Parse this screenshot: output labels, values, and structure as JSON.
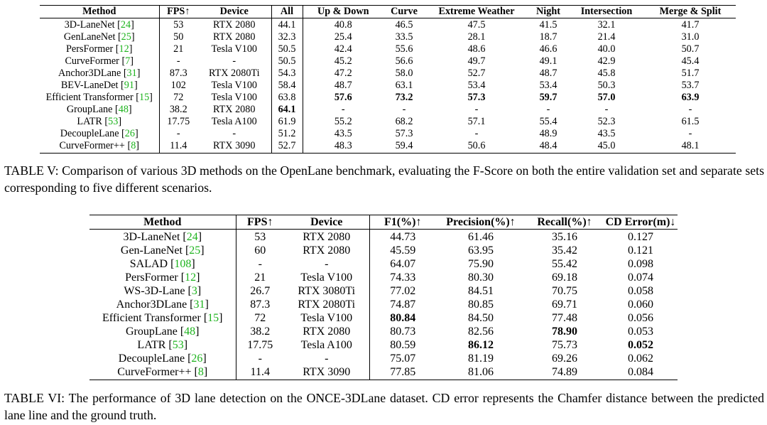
{
  "table5": {
    "headers": [
      "Method",
      "FPS↑",
      "Device",
      "All",
      "Up & Down",
      "Curve",
      "Extreme Weather",
      "Night",
      "Intersection",
      "Merge & Split"
    ],
    "rows": [
      {
        "method": "3D-LaneNet",
        "ref": "24",
        "fps": "53",
        "device": "RTX 2080",
        "all": "44.1",
        "updown": "40.8",
        "curve": "46.5",
        "weather": "47.5",
        "night": "41.5",
        "intersection": "32.1",
        "merge": "41.7"
      },
      {
        "method": "GenLaneNet",
        "ref": "25",
        "fps": "50",
        "device": "RTX 2080",
        "all": "32.3",
        "updown": "25.4",
        "curve": "33.5",
        "weather": "28.1",
        "night": "18.7",
        "intersection": "21.4",
        "merge": "31.0"
      },
      {
        "method": "PersFormer",
        "ref": "12",
        "fps": "21",
        "device": "Tesla V100",
        "all": "50.5",
        "updown": "42.4",
        "curve": "55.6",
        "weather": "48.6",
        "night": "46.6",
        "intersection": "40.0",
        "merge": "50.7"
      },
      {
        "method": "CurveFormer",
        "ref": "7",
        "fps": "-",
        "device": "-",
        "all": "50.5",
        "updown": "45.2",
        "curve": "56.6",
        "weather": "49.7",
        "night": "49.1",
        "intersection": "42.9",
        "merge": "45.4"
      },
      {
        "method": "Anchor3DLane",
        "ref": "31",
        "fps": "87.3",
        "device": "RTX 2080Ti",
        "all": "54.3",
        "updown": "47.2",
        "curve": "58.0",
        "weather": "52.7",
        "night": "48.7",
        "intersection": "45.8",
        "merge": "51.7"
      },
      {
        "method": "BEV-LaneDet",
        "ref": "91",
        "fps": "102",
        "device": "Tesla V100",
        "all": "58.4",
        "updown": "48.7",
        "curve": "63.1",
        "weather": "53.4",
        "night": "53.4",
        "intersection": "50.3",
        "merge": "53.7"
      },
      {
        "method": "Efficient Transformer",
        "ref": "15",
        "fps": "72",
        "device": "Tesla V100",
        "all": "63.8",
        "updown": "57.6",
        "curve": "73.2",
        "weather": "57.3",
        "night": "59.7",
        "intersection": "57.0",
        "merge": "63.9"
      },
      {
        "method": "GroupLane",
        "ref": "48",
        "fps": "38.2",
        "device": "RTX 2080",
        "all": "64.1",
        "updown": "-",
        "curve": "-",
        "weather": "-",
        "night": "-",
        "intersection": "-",
        "merge": "-"
      },
      {
        "method": "LATR",
        "ref": "53",
        "fps": "17.75",
        "device": "Tesla A100",
        "all": "61.9",
        "updown": "55.2",
        "curve": "68.2",
        "weather": "57.1",
        "night": "55.4",
        "intersection": "52.3",
        "merge": "61.5"
      },
      {
        "method": "DecoupleLane",
        "ref": "26",
        "fps": "-",
        "device": "-",
        "all": "51.2",
        "updown": "43.5",
        "curve": "57.3",
        "weather": "-",
        "night": "48.9",
        "intersection": "43.5",
        "merge": "-"
      },
      {
        "method": "CurveFormer++",
        "ref": "8",
        "fps": "11.4",
        "device": "RTX 3090",
        "all": "52.7",
        "updown": "48.3",
        "curve": "59.4",
        "weather": "50.6",
        "night": "48.4",
        "intersection": "45.0",
        "merge": "48.1"
      }
    ],
    "bold_cells": [
      [
        6,
        "updown"
      ],
      [
        6,
        "curve"
      ],
      [
        6,
        "weather"
      ],
      [
        6,
        "night"
      ],
      [
        6,
        "intersection"
      ],
      [
        6,
        "merge"
      ],
      [
        7,
        "all"
      ]
    ],
    "caption": "TABLE V: Comparison of various 3D methods on the OpenLane benchmark, evaluating the F-Score on both the entire validation set and separate sets corresponding to five different scenarios."
  },
  "table6": {
    "headers": [
      "Method",
      "FPS↑",
      "Device",
      "F1(%)↑",
      "Precision(%)↑",
      "Recall(%)↑",
      "CD Error(m)↓"
    ],
    "rows": [
      {
        "method": "3D-LaneNet",
        "ref": "24",
        "fps": "53",
        "device": "RTX 2080",
        "f1": "44.73",
        "precision": "61.46",
        "recall": "35.16",
        "cd": "0.127"
      },
      {
        "method": "Gen-LaneNet",
        "ref": "25",
        "fps": "60",
        "device": "RTX 2080",
        "f1": "45.59",
        "precision": "63.95",
        "recall": "35.42",
        "cd": "0.121"
      },
      {
        "method": "SALAD",
        "ref": "108",
        "fps": "-",
        "device": "-",
        "f1": "64.07",
        "precision": "75.90",
        "recall": "55.42",
        "cd": "0.098"
      },
      {
        "method": "PersFormer",
        "ref": "12",
        "fps": "21",
        "device": "Tesla V100",
        "f1": "74.33",
        "precision": "80.30",
        "recall": "69.18",
        "cd": "0.074"
      },
      {
        "method": "WS-3D-Lane",
        "ref": "3",
        "fps": "26.7",
        "device": "RTX 3080Ti",
        "f1": "77.02",
        "precision": "84.51",
        "recall": "70.75",
        "cd": "0.058"
      },
      {
        "method": "Anchor3DLane",
        "ref": "31",
        "fps": "87.3",
        "device": "RTX 2080Ti",
        "f1": "74.87",
        "precision": "80.85",
        "recall": "69.71",
        "cd": "0.060"
      },
      {
        "method": "Efficient Transformer",
        "ref": "15",
        "fps": "72",
        "device": "Tesla V100",
        "f1": "80.84",
        "precision": "84.50",
        "recall": "77.48",
        "cd": "0.056"
      },
      {
        "method": "GroupLane",
        "ref": "48",
        "fps": "38.2",
        "device": "RTX 2080",
        "f1": "80.73",
        "precision": "82.56",
        "recall": "78.90",
        "cd": "0.053"
      },
      {
        "method": "LATR",
        "ref": "53",
        "fps": "17.75",
        "device": "Tesla A100",
        "f1": "80.59",
        "precision": "86.12",
        "recall": "75.73",
        "cd": "0.052"
      },
      {
        "method": "DecoupleLane",
        "ref": "26",
        "fps": "-",
        "device": "-",
        "f1": "75.07",
        "precision": "81.19",
        "recall": "69.26",
        "cd": "0.062"
      },
      {
        "method": "CurveFormer++",
        "ref": "8",
        "fps": "11.4",
        "device": "RTX 3090",
        "f1": "77.85",
        "precision": "81.06",
        "recall": "74.89",
        "cd": "0.084"
      }
    ],
    "bold_cells": [
      [
        6,
        "f1"
      ],
      [
        7,
        "recall"
      ],
      [
        8,
        "precision"
      ],
      [
        8,
        "cd"
      ]
    ],
    "caption": "TABLE VI: The performance of 3D lane detection on the ONCE-3DLane dataset. CD error represents the Chamfer distance between the predicted lane line and the ground truth."
  },
  "colors": {
    "citation": "#1db31d",
    "text": "#000000",
    "background": "#ffffff"
  }
}
